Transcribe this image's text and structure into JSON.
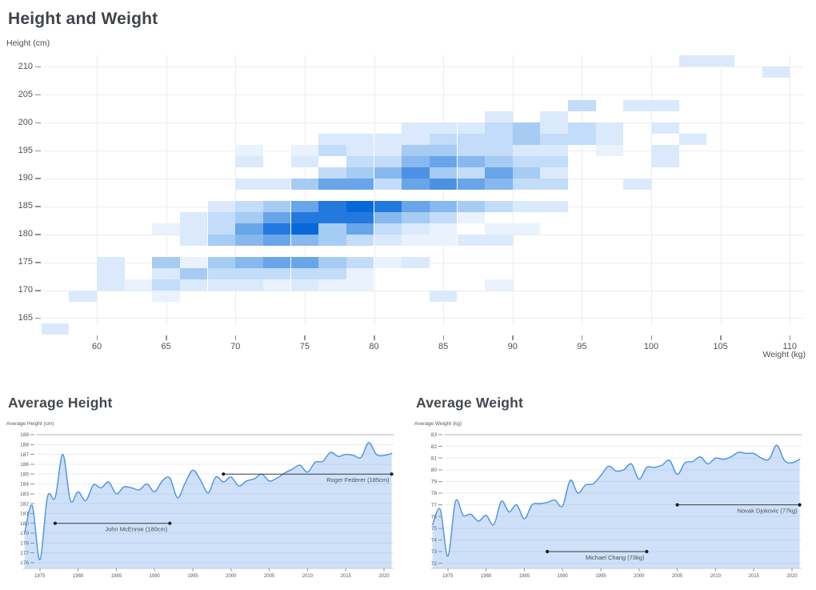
{
  "colors": {
    "title_text": "#3f4449",
    "tick_text": "#55595c",
    "grid": "#ececec",
    "grid_strong": "#b3b3b6",
    "axis_line": "#c9c9c9",
    "line_blue": "#4a91e5",
    "area_fill": "rgba(74,145,229,0.27)",
    "annotation_line": "#3c3c3c",
    "annotation_text": "#4d5154",
    "heat_palette": [
      "#e9f2fd",
      "#daeafc",
      "#c2dcf9",
      "#a6ccf4",
      "#87b8ef",
      "#68a5e9",
      "#4b92e4",
      "#2379de",
      "#0669da"
    ]
  },
  "chart_data": [
    {
      "type": "heatmap",
      "title": "Height and Weight",
      "ylabel": "Height (cm)",
      "xlabel": "Weight (kg)",
      "y_ticks": [
        210,
        205,
        200,
        195,
        190,
        185,
        180,
        175,
        170,
        165
      ],
      "x_ticks": [
        60,
        65,
        70,
        75,
        80,
        85,
        90,
        95,
        100,
        105,
        110
      ],
      "bin_width_kg": 2,
      "bin_height_cm": 2,
      "grid": true,
      "cells_format": "[height_bin_start_cm, weight_bin_start_kg, intensity_1_to_9]",
      "cells": [
        [
          210,
          102,
          2
        ],
        [
          210,
          104,
          2
        ],
        [
          208,
          108,
          2
        ],
        [
          202,
          94,
          3
        ],
        [
          202,
          98,
          2
        ],
        [
          202,
          100,
          2
        ],
        [
          200,
          88,
          2
        ],
        [
          200,
          92,
          2
        ],
        [
          198,
          82,
          2
        ],
        [
          198,
          84,
          2
        ],
        [
          198,
          86,
          2
        ],
        [
          198,
          88,
          3
        ],
        [
          198,
          90,
          4
        ],
        [
          198,
          92,
          2
        ],
        [
          198,
          94,
          3
        ],
        [
          198,
          96,
          2
        ],
        [
          198,
          100,
          2
        ],
        [
          196,
          76,
          2
        ],
        [
          196,
          78,
          2
        ],
        [
          196,
          80,
          2
        ],
        [
          196,
          82,
          2
        ],
        [
          196,
          84,
          3
        ],
        [
          196,
          86,
          3
        ],
        [
          196,
          88,
          3
        ],
        [
          196,
          90,
          4
        ],
        [
          196,
          92,
          3
        ],
        [
          196,
          94,
          3
        ],
        [
          196,
          96,
          2
        ],
        [
          196,
          102,
          2
        ],
        [
          194,
          70,
          1
        ],
        [
          194,
          74,
          1
        ],
        [
          194,
          76,
          3
        ],
        [
          194,
          78,
          2
        ],
        [
          194,
          80,
          2
        ],
        [
          194,
          82,
          4
        ],
        [
          194,
          84,
          4
        ],
        [
          194,
          86,
          3
        ],
        [
          194,
          88,
          3
        ],
        [
          194,
          90,
          2
        ],
        [
          194,
          92,
          2
        ],
        [
          194,
          96,
          1
        ],
        [
          194,
          100,
          2
        ],
        [
          192,
          70,
          2
        ],
        [
          192,
          74,
          2
        ],
        [
          192,
          78,
          3
        ],
        [
          192,
          80,
          3
        ],
        [
          192,
          82,
          5
        ],
        [
          192,
          84,
          6
        ],
        [
          192,
          86,
          5
        ],
        [
          192,
          88,
          4
        ],
        [
          192,
          90,
          3
        ],
        [
          192,
          92,
          3
        ],
        [
          192,
          100,
          2
        ],
        [
          190,
          76,
          3
        ],
        [
          190,
          78,
          4
        ],
        [
          190,
          80,
          5
        ],
        [
          190,
          82,
          7
        ],
        [
          190,
          84,
          4
        ],
        [
          190,
          86,
          3
        ],
        [
          190,
          88,
          6
        ],
        [
          190,
          90,
          4
        ],
        [
          190,
          92,
          2
        ],
        [
          188,
          70,
          2
        ],
        [
          188,
          72,
          2
        ],
        [
          188,
          74,
          4
        ],
        [
          188,
          76,
          6
        ],
        [
          188,
          78,
          6
        ],
        [
          188,
          80,
          3
        ],
        [
          188,
          82,
          6
        ],
        [
          188,
          84,
          7
        ],
        [
          188,
          86,
          6
        ],
        [
          188,
          88,
          5
        ],
        [
          188,
          90,
          3
        ],
        [
          188,
          92,
          3
        ],
        [
          188,
          98,
          2
        ],
        [
          184,
          68,
          2
        ],
        [
          184,
          70,
          3
        ],
        [
          184,
          72,
          4
        ],
        [
          184,
          74,
          6
        ],
        [
          184,
          76,
          8
        ],
        [
          184,
          78,
          9
        ],
        [
          184,
          80,
          8
        ],
        [
          184,
          82,
          6
        ],
        [
          184,
          84,
          5
        ],
        [
          184,
          86,
          4
        ],
        [
          184,
          88,
          3
        ],
        [
          184,
          90,
          2
        ],
        [
          184,
          92,
          2
        ],
        [
          182,
          66,
          2
        ],
        [
          182,
          68,
          3
        ],
        [
          182,
          70,
          4
        ],
        [
          182,
          72,
          6
        ],
        [
          182,
          74,
          8
        ],
        [
          182,
          76,
          8
        ],
        [
          182,
          78,
          8
        ],
        [
          182,
          80,
          5
        ],
        [
          182,
          82,
          4
        ],
        [
          182,
          84,
          3
        ],
        [
          182,
          86,
          1
        ],
        [
          180,
          64,
          1
        ],
        [
          180,
          66,
          2
        ],
        [
          180,
          68,
          3
        ],
        [
          180,
          70,
          6
        ],
        [
          180,
          72,
          8
        ],
        [
          180,
          74,
          9
        ],
        [
          180,
          76,
          4
        ],
        [
          180,
          78,
          6
        ],
        [
          180,
          80,
          3
        ],
        [
          180,
          82,
          2
        ],
        [
          180,
          84,
          1
        ],
        [
          180,
          88,
          1
        ],
        [
          180,
          90,
          1
        ],
        [
          178,
          66,
          2
        ],
        [
          178,
          68,
          4
        ],
        [
          178,
          70,
          5
        ],
        [
          178,
          72,
          6
        ],
        [
          178,
          74,
          5
        ],
        [
          178,
          76,
          4
        ],
        [
          178,
          78,
          3
        ],
        [
          178,
          80,
          2
        ],
        [
          178,
          82,
          1
        ],
        [
          178,
          84,
          1
        ],
        [
          178,
          86,
          2
        ],
        [
          178,
          88,
          2
        ],
        [
          174,
          60,
          2
        ],
        [
          174,
          64,
          4
        ],
        [
          174,
          66,
          1
        ],
        [
          174,
          68,
          4
        ],
        [
          174,
          70,
          5
        ],
        [
          174,
          72,
          6
        ],
        [
          174,
          74,
          6
        ],
        [
          174,
          76,
          4
        ],
        [
          174,
          78,
          3
        ],
        [
          174,
          80,
          1
        ],
        [
          174,
          82,
          2
        ],
        [
          172,
          60,
          2
        ],
        [
          172,
          64,
          2
        ],
        [
          172,
          66,
          4
        ],
        [
          172,
          68,
          3
        ],
        [
          172,
          70,
          3
        ],
        [
          172,
          72,
          3
        ],
        [
          172,
          74,
          3
        ],
        [
          172,
          76,
          3
        ],
        [
          172,
          78,
          1
        ],
        [
          170,
          60,
          2
        ],
        [
          170,
          62,
          1
        ],
        [
          170,
          64,
          3
        ],
        [
          170,
          66,
          2
        ],
        [
          170,
          68,
          2
        ],
        [
          170,
          70,
          2
        ],
        [
          170,
          72,
          1
        ],
        [
          170,
          74,
          2
        ],
        [
          170,
          76,
          1
        ],
        [
          170,
          78,
          1
        ],
        [
          170,
          88,
          1
        ],
        [
          168,
          58,
          2
        ],
        [
          168,
          64,
          1
        ],
        [
          168,
          84,
          2
        ],
        [
          162,
          56,
          2
        ]
      ]
    },
    {
      "type": "area",
      "title": "Average Height",
      "ylabel": "Average Height (cm)",
      "y_ticks": [
        189,
        188,
        187,
        186,
        185,
        184,
        183,
        182,
        181,
        180,
        179,
        178,
        177,
        176
      ],
      "x_ticks": [
        1975,
        1980,
        1985,
        1990,
        1995,
        2000,
        2005,
        2010,
        2015,
        2020
      ],
      "x": [
        1973,
        1974,
        1975,
        1976,
        1977,
        1978,
        1979,
        1980,
        1981,
        1982,
        1983,
        1984,
        1985,
        1986,
        1987,
        1988,
        1989,
        1990,
        1991,
        1992,
        1993,
        1994,
        1995,
        1996,
        1997,
        1998,
        1999,
        2000,
        2001,
        2002,
        2003,
        2004,
        2005,
        2006,
        2007,
        2008,
        2009,
        2010,
        2011,
        2012,
        2013,
        2014,
        2015,
        2016,
        2017,
        2018,
        2019,
        2020,
        2021
      ],
      "values": [
        179.0,
        181.8,
        176.3,
        182.7,
        182.6,
        187.0,
        182.3,
        183.2,
        182.3,
        183.9,
        183.6,
        184.2,
        183.0,
        183.7,
        183.6,
        183.4,
        184.0,
        183.2,
        184.3,
        184.6,
        182.6,
        184.1,
        185.4,
        184.4,
        183.1,
        184.7,
        184.2,
        184.7,
        183.8,
        184.3,
        184.5,
        185.0,
        184.3,
        184.6,
        185.1,
        185.5,
        185.9,
        185.2,
        186.2,
        186.3,
        187.2,
        186.8,
        187.0,
        186.9,
        186.7,
        188.2,
        187.0,
        186.9,
        187.1
      ],
      "annotations": [
        {
          "label": "John McEnroe (180cm)",
          "value": 180,
          "from": 1977,
          "to": 1992
        },
        {
          "label": "Roger Federer (185cm)",
          "value": 185,
          "from": 1999,
          "to": 2021
        }
      ]
    },
    {
      "type": "area",
      "title": "Average Weight",
      "ylabel": "Average Weight (kg)",
      "y_ticks": [
        83,
        82,
        81,
        80,
        79,
        78,
        77,
        76,
        75,
        74,
        73,
        72
      ],
      "x_ticks": [
        1975,
        1980,
        1985,
        1990,
        1995,
        2000,
        2005,
        2010,
        2015,
        2020
      ],
      "x": [
        1973,
        1974,
        1975,
        1976,
        1977,
        1978,
        1979,
        1980,
        1981,
        1982,
        1983,
        1984,
        1985,
        1986,
        1987,
        1988,
        1989,
        1990,
        1991,
        1992,
        1993,
        1994,
        1995,
        1996,
        1997,
        1998,
        1999,
        2000,
        2001,
        2002,
        2003,
        2004,
        2005,
        2006,
        2007,
        2008,
        2009,
        2010,
        2011,
        2012,
        2013,
        2014,
        2015,
        2016,
        2017,
        2018,
        2019,
        2020,
        2021
      ],
      "values": [
        75.3,
        76.6,
        72.6,
        77.3,
        76.1,
        76.2,
        75.6,
        76.1,
        75.3,
        77.3,
        76.4,
        77.0,
        75.8,
        77.0,
        77.1,
        77.2,
        77.4,
        76.9,
        79.1,
        78.0,
        78.7,
        78.8,
        79.5,
        80.3,
        79.9,
        80.0,
        80.5,
        79.2,
        80.2,
        80.2,
        80.4,
        80.8,
        79.6,
        80.6,
        80.7,
        81.1,
        80.5,
        81.0,
        80.9,
        81.1,
        81.5,
        81.4,
        81.4,
        81.0,
        80.9,
        82.1,
        80.8,
        80.6,
        80.9
      ],
      "annotations": [
        {
          "label": "Michael Chang (73kg)",
          "value": 73,
          "from": 1988,
          "to": 2001
        },
        {
          "label": "Novak Djokovic (77kg)",
          "value": 77,
          "from": 2005,
          "to": 2021
        }
      ]
    }
  ]
}
